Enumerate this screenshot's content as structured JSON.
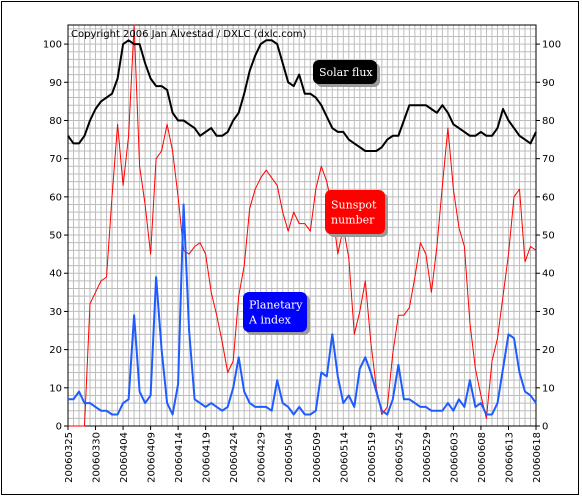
{
  "chart_data": {
    "type": "line",
    "copyright": "Copyright 2006 Jan Alvestad / DXLC (dxlc.com)",
    "ylim": [
      0,
      105
    ],
    "yticks": [
      0,
      10,
      20,
      30,
      40,
      50,
      60,
      70,
      80,
      90,
      100
    ],
    "x_tick_labels": [
      "20060325",
      "20060330",
      "20060404",
      "20060409",
      "20060414",
      "20060419",
      "20060424",
      "20060429",
      "20060504",
      "20060509",
      "20060514",
      "20060519",
      "20060524",
      "20060529",
      "20060603",
      "20060608",
      "20060613",
      "20060618"
    ],
    "x_count": 86,
    "series": [
      {
        "name": "Solar flux",
        "label_lines": [
          "Solar flux"
        ],
        "color": "#000000",
        "label_bg": "#000000",
        "values": [
          76,
          74,
          74,
          76,
          80,
          83,
          85,
          86,
          87,
          91,
          100,
          101,
          100,
          100,
          95,
          91,
          89,
          89,
          88,
          82,
          80,
          80,
          79,
          78,
          76,
          77,
          78,
          76,
          76,
          77,
          80,
          82,
          87,
          93,
          97,
          100,
          101,
          101,
          100,
          95,
          90,
          89,
          92,
          87,
          87,
          86,
          84,
          81,
          78,
          77,
          77,
          75,
          74,
          73,
          72,
          72,
          72,
          73,
          75,
          76,
          76,
          80,
          84,
          84,
          84,
          84,
          83,
          82,
          84,
          82,
          79,
          78,
          77,
          76,
          76,
          77,
          76,
          76,
          78,
          83,
          80,
          78,
          76,
          75,
          74,
          77
        ]
      },
      {
        "name": "Sunspot number",
        "label_lines": [
          "Sunspot",
          "number"
        ],
        "color": "#ff0000",
        "label_bg": "#ff0000",
        "values": [
          0,
          0,
          0,
          0,
          32,
          35,
          38,
          39,
          60,
          79,
          63,
          76,
          105,
          68,
          58,
          45,
          70,
          72,
          79,
          72,
          60,
          46,
          45,
          47,
          48,
          45,
          35,
          29,
          22,
          14,
          17,
          34,
          42,
          57,
          62,
          65,
          67,
          65,
          63,
          56,
          51,
          56,
          53,
          53,
          51,
          62,
          68,
          64,
          57,
          45,
          52,
          44,
          24,
          30,
          38,
          22,
          10,
          3,
          5,
          19,
          29,
          29,
          31,
          39,
          48,
          45,
          35,
          47,
          63,
          78,
          62,
          52,
          47,
          27,
          15,
          8,
          2,
          17,
          23,
          34,
          45,
          60,
          62,
          43,
          47,
          46
        ]
      },
      {
        "name": "Planetary A index",
        "label_lines": [
          "Planetary",
          "A index"
        ],
        "color": "#1f5cff",
        "label_bg": "#0000ff",
        "values": [
          7,
          7,
          9,
          6,
          6,
          5,
          4,
          4,
          3,
          3,
          6,
          7,
          29,
          9,
          6,
          8,
          39,
          20,
          6,
          3,
          11,
          58,
          25,
          7,
          6,
          5,
          6,
          5,
          4,
          5,
          10,
          18,
          9,
          6,
          5,
          5,
          5,
          4,
          12,
          6,
          5,
          3,
          5,
          3,
          3,
          4,
          14,
          13,
          24,
          13,
          6,
          8,
          5,
          15,
          18,
          14,
          9,
          4,
          3,
          7,
          16,
          7,
          7,
          6,
          5,
          5,
          4,
          4,
          4,
          6,
          4,
          7,
          5,
          12,
          5,
          6,
          3,
          3,
          6,
          15,
          24,
          23,
          14,
          9,
          8,
          6
        ]
      }
    ]
  }
}
